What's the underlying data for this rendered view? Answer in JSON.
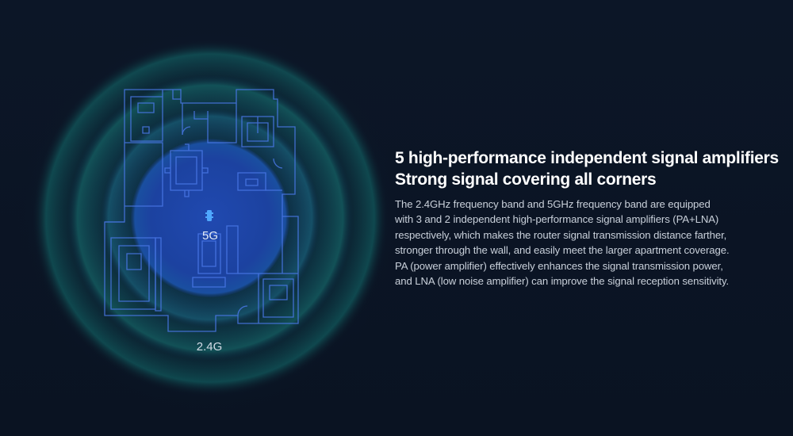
{
  "headline": {
    "line1": "5 high-performance independent signal amplifiers",
    "line2": "Strong signal covering all corners"
  },
  "body": {
    "lines": [
      "The 2.4GHz frequency band and 5GHz frequency band are equipped",
      "with 3 and 2 independent high-performance signal amplifiers (PA+LNA)",
      "respectively, which makes the router signal transmission distance farther,",
      "stronger through the wall, and easily meet the larger apartment coverage.",
      "PA (power amplifier) effectively enhances the signal transmission power,",
      "and LNA (low noise amplifier) can improve the signal reception sensitivity."
    ]
  },
  "diagram": {
    "label_5g": "5G",
    "label_24g": "2.4G",
    "router_icon": "router-icon",
    "colors": {
      "background": "#0b1424",
      "inner_zone": "#1b3f9e",
      "outer_ring": "#0f6a6a",
      "floorplan_line": "#4a78e8"
    }
  }
}
